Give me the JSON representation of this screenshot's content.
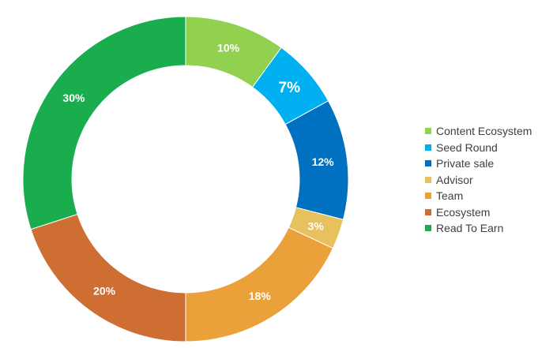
{
  "chart_data": {
    "type": "pie",
    "donut": true,
    "categories": [
      "Content Ecosystem",
      "Seed Round",
      "Private sale",
      "Advisor",
      "Team",
      "Ecosystem",
      "Read To Earn"
    ],
    "values": [
      10,
      7,
      12,
      3,
      18,
      20,
      30
    ],
    "labels": [
      "10%",
      "7%",
      "12%",
      "3%",
      "18%",
      "20%",
      "30%"
    ],
    "colors": [
      "#92d050",
      "#00b0f0",
      "#0070c0",
      "#e8c15f",
      "#eba13a",
      "#cf6e32",
      "#19ad4e"
    ],
    "legend": {
      "position": "right",
      "entries": [
        "Content Ecosystem",
        "Seed Round",
        "Private sale",
        "Advisor",
        "Team",
        "Ecosystem",
        "Read To Earn"
      ]
    },
    "title": "",
    "start_angle": "top, clockwise"
  }
}
